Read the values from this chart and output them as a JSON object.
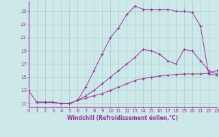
{
  "xlabel": "Windchill (Refroidissement éolien,°C)",
  "bg_color": "#cce8e8",
  "grid_color": "#aacccc",
  "line_color": "#993399",
  "line1_x": [
    0,
    1,
    2,
    3,
    4,
    5,
    6,
    7,
    8,
    9,
    10,
    11,
    12,
    13,
    14,
    15,
    16,
    17,
    18,
    19,
    20,
    21,
    22,
    23
  ],
  "line1_y": [
    13.0,
    11.2,
    11.2,
    11.2,
    11.0,
    11.0,
    11.5,
    13.5,
    16.0,
    18.5,
    21.0,
    22.5,
    24.5,
    25.8,
    25.3,
    25.3,
    25.3,
    25.3,
    25.0,
    25.0,
    24.8,
    22.8,
    15.5,
    15.3
  ],
  "line2_x": [
    1,
    2,
    3,
    4,
    5,
    6,
    7,
    8,
    9,
    10,
    11,
    12,
    13,
    14,
    15,
    16,
    17,
    18,
    19,
    20,
    21,
    22,
    23
  ],
  "line2_y": [
    11.2,
    11.2,
    11.2,
    11.0,
    11.0,
    11.5,
    12.2,
    13.0,
    14.0,
    15.0,
    16.0,
    17.0,
    18.0,
    19.2,
    19.0,
    18.5,
    17.5,
    17.0,
    19.2,
    19.0,
    17.5,
    16.0,
    15.5
  ],
  "line3_x": [
    1,
    2,
    3,
    4,
    5,
    6,
    7,
    8,
    9,
    10,
    11,
    12,
    13,
    14,
    15,
    16,
    17,
    18,
    19,
    20,
    21,
    22,
    23
  ],
  "line3_y": [
    11.2,
    11.2,
    11.2,
    11.0,
    11.0,
    11.5,
    11.8,
    12.2,
    12.5,
    13.0,
    13.5,
    14.0,
    14.5,
    14.8,
    15.0,
    15.2,
    15.3,
    15.4,
    15.5,
    15.5,
    15.5,
    15.6,
    16.0
  ],
  "xlim": [
    0,
    23
  ],
  "ylim": [
    10.5,
    26.5
  ],
  "xticks": [
    0,
    1,
    2,
    3,
    4,
    5,
    6,
    7,
    8,
    9,
    10,
    11,
    12,
    13,
    14,
    15,
    16,
    17,
    18,
    19,
    20,
    21,
    22,
    23
  ],
  "yticks": [
    11,
    13,
    15,
    17,
    19,
    21,
    23,
    25
  ],
  "tick_fontsize": 5.0,
  "xlabel_fontsize": 5.5
}
